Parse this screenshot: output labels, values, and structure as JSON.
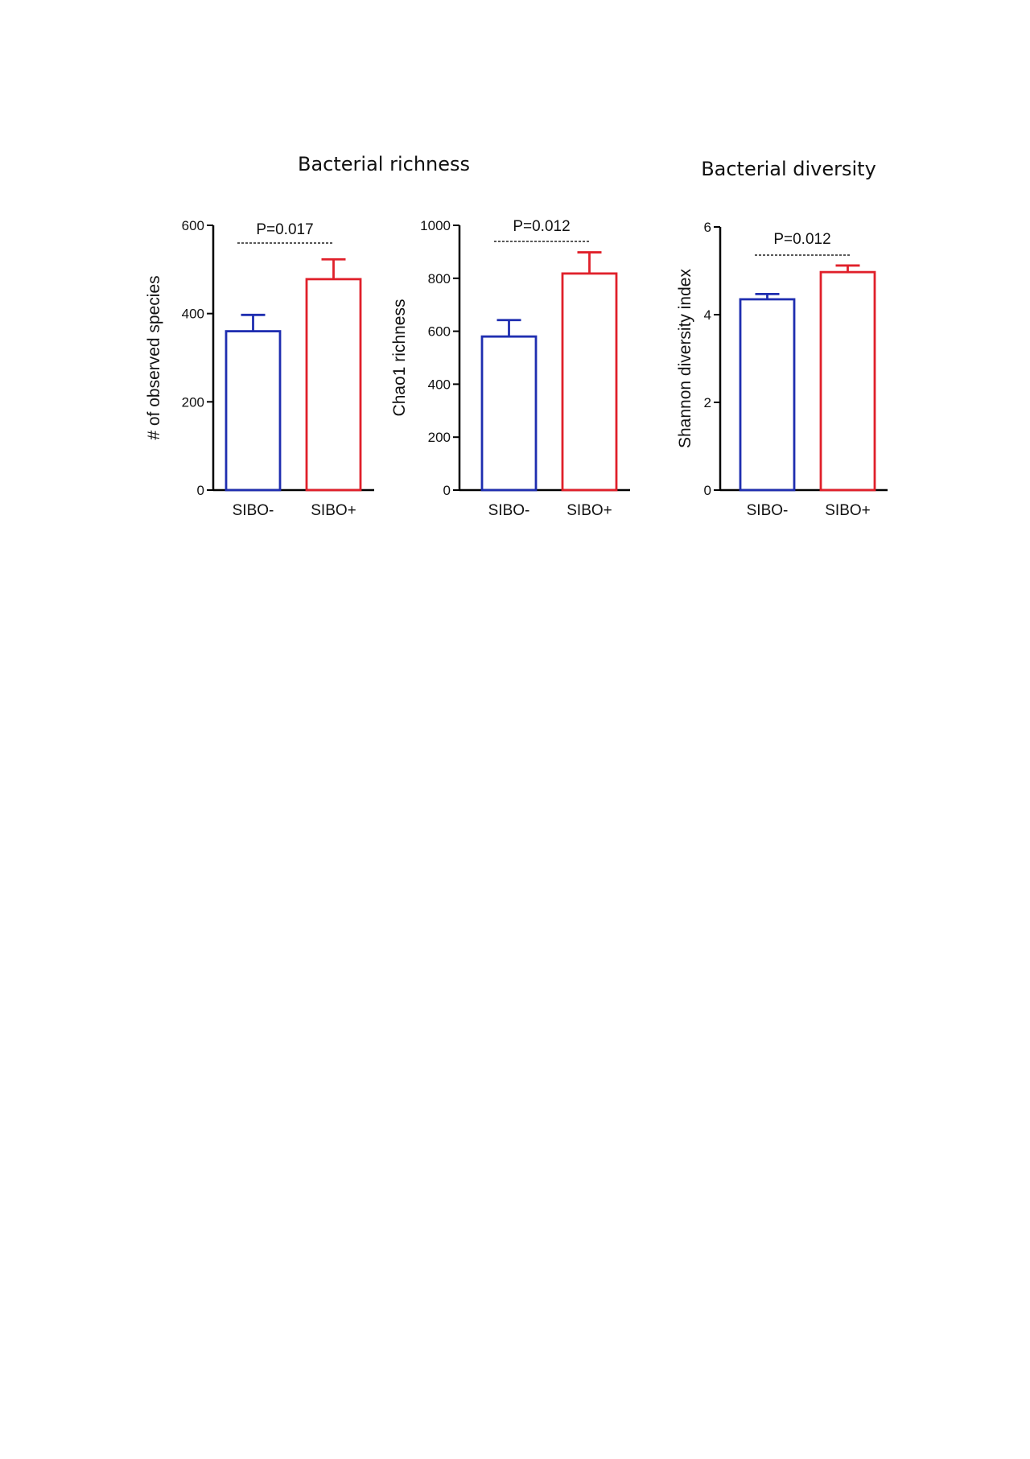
{
  "headings": {
    "richness": "Bacterial richness",
    "diversity": "Bacterial diversity"
  },
  "colors": {
    "sibo_negative": "#1f2eb0",
    "sibo_positive": "#e0202a",
    "axis": "#000000"
  },
  "chart_data": [
    {
      "type": "bar",
      "title": "",
      "ylabel": "# of observed species",
      "xlabel": "",
      "ylim": [
        0,
        600
      ],
      "yticks": [
        0,
        200,
        400,
        600
      ],
      "categories": [
        "SIBO-",
        "SIBO+"
      ],
      "values": [
        360,
        478
      ],
      "error": [
        37,
        45
      ],
      "significance": "P=0.017"
    },
    {
      "type": "bar",
      "title": "",
      "ylabel": "Chao1 richness",
      "xlabel": "",
      "ylim": [
        0,
        1000
      ],
      "yticks": [
        0,
        200,
        400,
        600,
        800,
        1000
      ],
      "categories": [
        "SIBO-",
        "SIBO+"
      ],
      "values": [
        580,
        818
      ],
      "error": [
        62,
        80
      ],
      "significance": "P=0.012"
    },
    {
      "type": "bar",
      "title": "",
      "ylabel": "Shannon diversity index",
      "xlabel": "",
      "ylim": [
        0,
        6
      ],
      "yticks": [
        0,
        2,
        4,
        6
      ],
      "categories": [
        "SIBO-",
        "SIBO+"
      ],
      "values": [
        4.35,
        4.97
      ],
      "error": [
        0.12,
        0.15
      ],
      "significance": "P=0.012"
    }
  ]
}
